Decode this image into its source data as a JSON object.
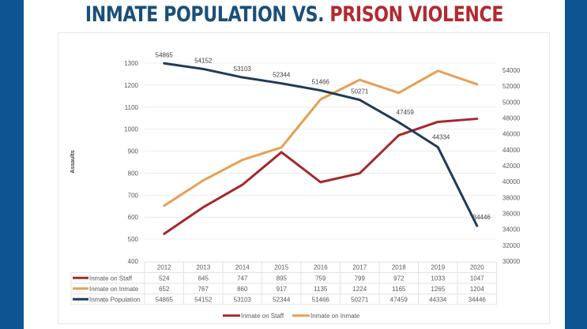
{
  "title": {
    "part1": "INMATE POPULATION VS.",
    "part2": "PRISON VIOLENCE"
  },
  "colors": {
    "border": "#0d5590",
    "title_blue": "#1a4f7a",
    "title_red": "#b22a30",
    "staff": "#a5282d",
    "inmate": "#e6a052",
    "population": "#1f3b57"
  },
  "chart_data": {
    "type": "line",
    "title": "Inmate Population vs. Prison Violence",
    "categories": [
      "2012",
      "2013",
      "2014",
      "2015",
      "2016",
      "2017",
      "2018",
      "2019",
      "2020"
    ],
    "ylabel": "Assaults",
    "ylim": [
      400,
      1300
    ],
    "yticks": [
      400,
      500,
      600,
      700,
      800,
      900,
      1000,
      1100,
      1200,
      1300
    ],
    "y2lim": [
      30000,
      54000
    ],
    "y2ticks": [
      30000,
      32000,
      34000,
      36000,
      38000,
      40000,
      42000,
      44000,
      46000,
      48000,
      50000,
      52000,
      54000
    ],
    "grid": true,
    "legend": "bottom-center",
    "data_table": true,
    "series": [
      {
        "name": "Inmate on Staff",
        "axis": "left",
        "values": [
          524,
          645,
          747,
          895,
          759,
          799,
          972,
          1033,
          1047
        ]
      },
      {
        "name": "Inmate on Inmate",
        "axis": "left",
        "values": [
          652,
          767,
          860,
          917,
          1135,
          1224,
          1165,
          1265,
          1204
        ]
      },
      {
        "name": "Inmate Population",
        "axis": "right",
        "values": [
          54865,
          54152,
          53103,
          52344,
          51466,
          50271,
          47459,
          44334,
          34446
        ],
        "data_labels": true
      }
    ],
    "legend_entries": [
      "Inmate on Staff",
      "Inmate on Inmate"
    ]
  }
}
